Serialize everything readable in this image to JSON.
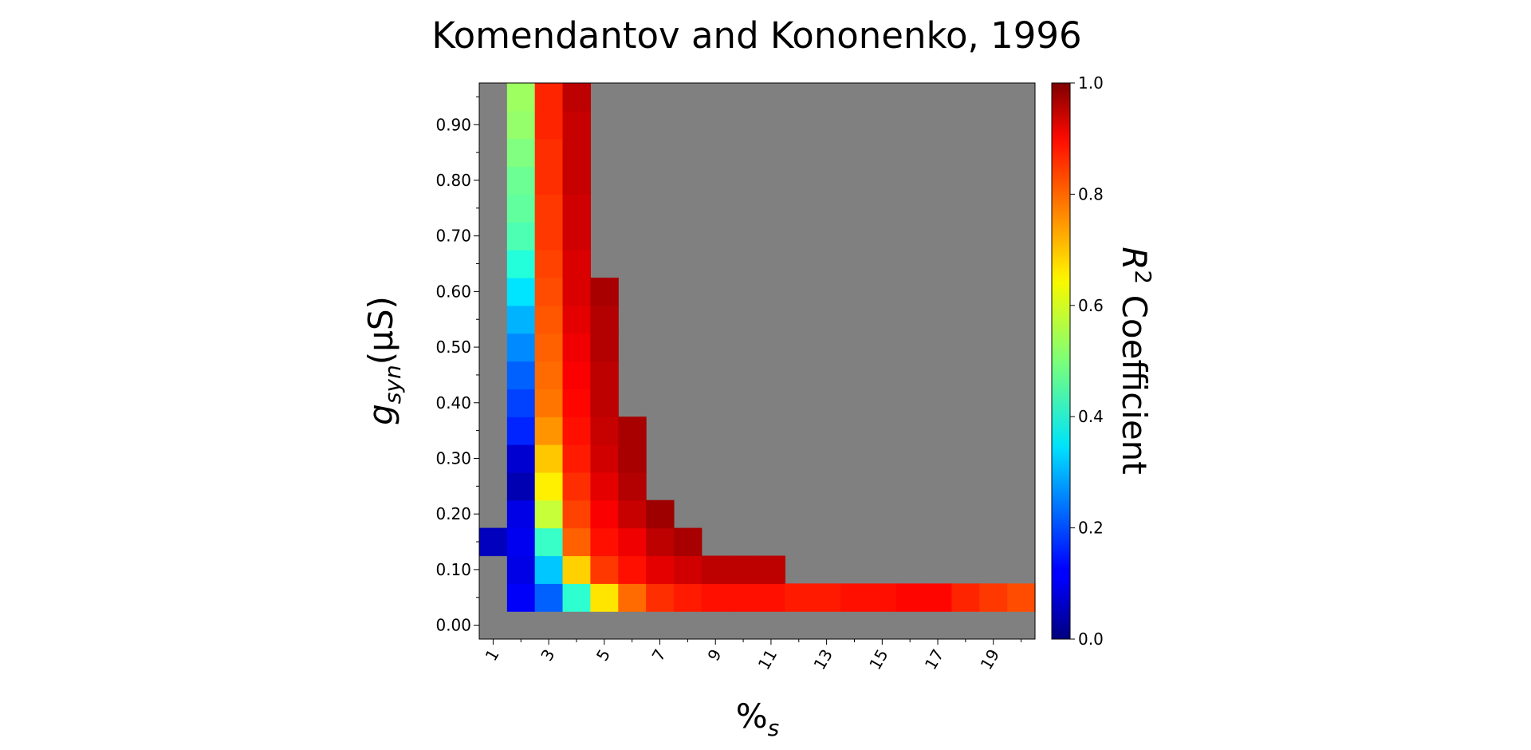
{
  "chart_data": {
    "type": "heatmap",
    "title": "Komendantov and Kononenko, 1996",
    "xlabel": "%",
    "xlabel_sub": "s",
    "ylabel": "g",
    "ylabel_sub": "syn",
    "ylabel_unit": "(μS)",
    "colorbar_label": "R",
    "colorbar_label_sup": "2",
    "colorbar_label_suffix": " Coefficient",
    "colormap": "jet",
    "missing_color": "#808080",
    "clim": [
      0.0,
      1.0
    ],
    "x": [
      1,
      2,
      3,
      4,
      5,
      6,
      7,
      8,
      9,
      10,
      11,
      12,
      13,
      14,
      15,
      16,
      17,
      18,
      19,
      20
    ],
    "x_tick_labels": [
      "1",
      "3",
      "5",
      "7",
      "9",
      "11",
      "13",
      "15",
      "17",
      "19"
    ],
    "y": [
      0.0,
      0.05,
      0.1,
      0.15,
      0.2,
      0.25,
      0.3,
      0.35,
      0.4,
      0.45,
      0.5,
      0.55,
      0.6,
      0.65,
      0.7,
      0.75,
      0.8,
      0.85,
      0.9,
      0.95
    ],
    "y_tick_labels": [
      "0.00",
      "0.10",
      "0.20",
      "0.30",
      "0.40",
      "0.50",
      "0.60",
      "0.70",
      "0.80",
      "0.90"
    ],
    "colorbar_ticks": [
      "0.0",
      "0.2",
      "0.4",
      "0.6",
      "0.8",
      "1.0"
    ],
    "values": [
      [
        null,
        null,
        null,
        null,
        null,
        null,
        null,
        null,
        null,
        null,
        null,
        null,
        null,
        null,
        null,
        null,
        null,
        null,
        null,
        null
      ],
      [
        null,
        0.12,
        0.22,
        0.42,
        0.65,
        0.77,
        0.83,
        0.85,
        0.86,
        0.86,
        0.86,
        0.85,
        0.85,
        0.86,
        0.86,
        0.87,
        0.87,
        0.84,
        0.82,
        0.8
      ],
      [
        null,
        0.1,
        0.32,
        0.67,
        0.82,
        0.86,
        0.9,
        0.92,
        0.94,
        0.94,
        0.94,
        null,
        null,
        null,
        null,
        null,
        null,
        null,
        null,
        null
      ],
      [
        0.06,
        0.11,
        0.43,
        0.78,
        0.86,
        0.89,
        0.94,
        0.96,
        null,
        null,
        null,
        null,
        null,
        null,
        null,
        null,
        null,
        null,
        null,
        null
      ],
      [
        null,
        0.1,
        0.57,
        0.81,
        0.88,
        0.93,
        0.97,
        null,
        null,
        null,
        null,
        null,
        null,
        null,
        null,
        null,
        null,
        null,
        null,
        null
      ],
      [
        null,
        0.05,
        0.64,
        0.83,
        0.9,
        0.95,
        null,
        null,
        null,
        null,
        null,
        null,
        null,
        null,
        null,
        null,
        null,
        null,
        null,
        null
      ],
      [
        null,
        0.08,
        0.68,
        0.85,
        0.92,
        0.96,
        null,
        null,
        null,
        null,
        null,
        null,
        null,
        null,
        null,
        null,
        null,
        null,
        null,
        null
      ],
      [
        null,
        0.16,
        0.73,
        0.86,
        0.93,
        0.96,
        null,
        null,
        null,
        null,
        null,
        null,
        null,
        null,
        null,
        null,
        null,
        null,
        null,
        null
      ],
      [
        null,
        0.19,
        0.76,
        0.87,
        0.94,
        null,
        null,
        null,
        null,
        null,
        null,
        null,
        null,
        null,
        null,
        null,
        null,
        null,
        null,
        null
      ],
      [
        null,
        0.22,
        0.77,
        0.88,
        0.94,
        null,
        null,
        null,
        null,
        null,
        null,
        null,
        null,
        null,
        null,
        null,
        null,
        null,
        null,
        null
      ],
      [
        null,
        0.26,
        0.78,
        0.89,
        0.95,
        null,
        null,
        null,
        null,
        null,
        null,
        null,
        null,
        null,
        null,
        null,
        null,
        null,
        null,
        null
      ],
      [
        null,
        0.3,
        0.79,
        0.9,
        0.95,
        null,
        null,
        null,
        null,
        null,
        null,
        null,
        null,
        null,
        null,
        null,
        null,
        null,
        null,
        null
      ],
      [
        null,
        0.35,
        0.8,
        0.91,
        0.96,
        null,
        null,
        null,
        null,
        null,
        null,
        null,
        null,
        null,
        null,
        null,
        null,
        null,
        null,
        null
      ],
      [
        null,
        0.41,
        0.81,
        0.91,
        null,
        null,
        null,
        null,
        null,
        null,
        null,
        null,
        null,
        null,
        null,
        null,
        null,
        null,
        null,
        null
      ],
      [
        null,
        0.45,
        0.82,
        0.92,
        null,
        null,
        null,
        null,
        null,
        null,
        null,
        null,
        null,
        null,
        null,
        null,
        null,
        null,
        null,
        null
      ],
      [
        null,
        0.47,
        0.82,
        0.92,
        null,
        null,
        null,
        null,
        null,
        null,
        null,
        null,
        null,
        null,
        null,
        null,
        null,
        null,
        null,
        null
      ],
      [
        null,
        0.48,
        0.83,
        0.93,
        null,
        null,
        null,
        null,
        null,
        null,
        null,
        null,
        null,
        null,
        null,
        null,
        null,
        null,
        null,
        null
      ],
      [
        null,
        0.5,
        0.83,
        0.93,
        null,
        null,
        null,
        null,
        null,
        null,
        null,
        null,
        null,
        null,
        null,
        null,
        null,
        null,
        null,
        null
      ],
      [
        null,
        0.52,
        0.84,
        0.93,
        null,
        null,
        null,
        null,
        null,
        null,
        null,
        null,
        null,
        null,
        null,
        null,
        null,
        null,
        null,
        null
      ],
      [
        null,
        0.53,
        0.84,
        0.94,
        null,
        null,
        null,
        null,
        null,
        null,
        null,
        null,
        null,
        null,
        null,
        null,
        null,
        null,
        null,
        null
      ]
    ]
  }
}
